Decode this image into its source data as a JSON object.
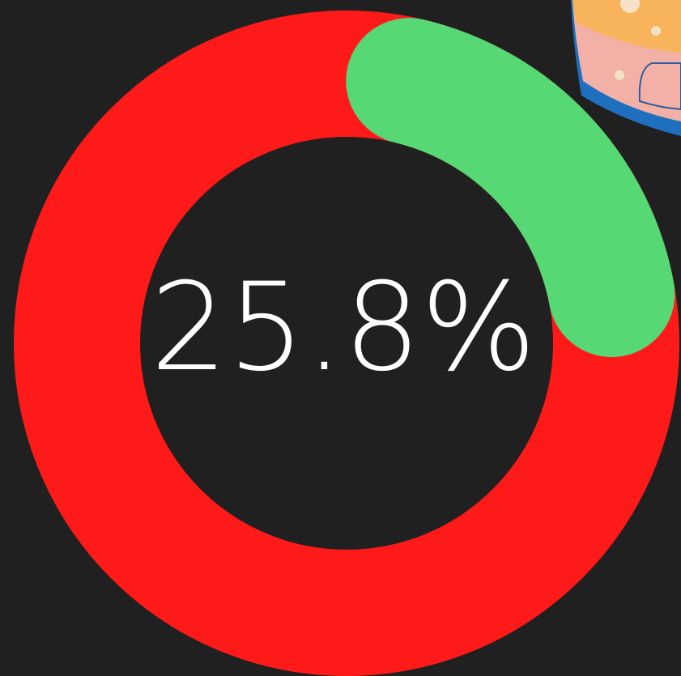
{
  "progress": {
    "value": 25.8,
    "label": "25.8%"
  }
}
